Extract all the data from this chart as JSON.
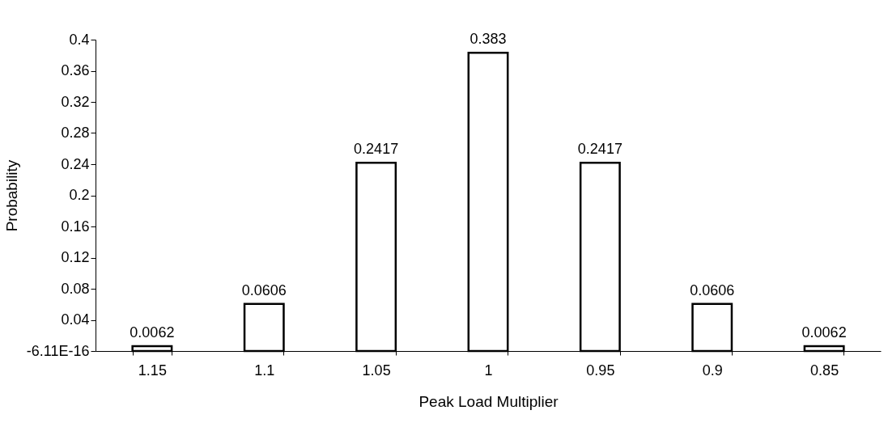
{
  "chart_data": {
    "type": "bar",
    "xlabel": "Peak Load Multiplier",
    "ylabel": "Probability",
    "categories": [
      "1.15",
      "1.1",
      "1.05",
      "1",
      "0.95",
      "0.9",
      "0.85"
    ],
    "values": [
      0.0062,
      0.0606,
      0.2417,
      0.383,
      0.2417,
      0.0606,
      0.0062
    ],
    "color": "#ffffff",
    "ylim": [
      0,
      0.4
    ],
    "yticks": [
      {
        "value": 0,
        "label": "-6.11E-16"
      },
      0.04,
      0.08,
      0.12,
      0.16,
      0.2,
      0.24,
      0.28,
      0.32,
      0.36,
      0.4
    ],
    "data_labels": true,
    "grid": false
  }
}
